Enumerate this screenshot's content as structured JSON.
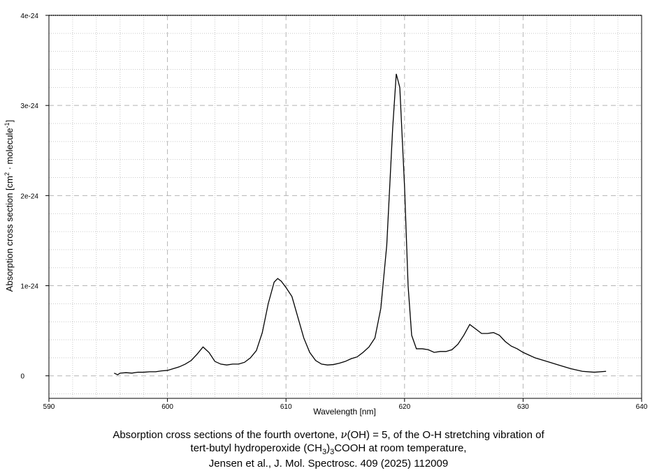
{
  "chart_data": {
    "type": "line",
    "title": "",
    "xlabel": "Wavelength [nm]",
    "ylabel": {
      "main": "Absorption cross section [cm",
      "exp1": "2",
      "mid": " · molecule",
      "exp2": "-1",
      "end": "]"
    },
    "xlim": [
      590,
      640
    ],
    "ylim": [
      -2.5e-25,
      4e-24
    ],
    "x_ticks": [
      590,
      600,
      610,
      620,
      630,
      640
    ],
    "x_tick_labels": [
      "590",
      "600",
      "610",
      "620",
      "630",
      "640"
    ],
    "y_ticks": [
      0,
      1e-24,
      2e-24,
      3e-24,
      4e-24
    ],
    "y_tick_labels": [
      "0",
      "1e-24",
      "2e-24",
      "3e-24",
      "4e-24"
    ],
    "grid": true,
    "series": [
      {
        "x": [
          595.5,
          595.8,
          596.0,
          596.5,
          597.0,
          597.5,
          598.0,
          598.5,
          599.0,
          599.5,
          600.0,
          600.5,
          601.0,
          601.5,
          602.0,
          602.5,
          603.0,
          603.5,
          604.0,
          604.5,
          605.0,
          605.5,
          606.0,
          606.5,
          607.0,
          607.5,
          608.0,
          608.5,
          609.0,
          609.3,
          609.6,
          610.0,
          610.5,
          611.0,
          611.5,
          612.0,
          612.5,
          613.0,
          613.5,
          614.0,
          614.5,
          615.0,
          615.5,
          616.0,
          616.5,
          617.0,
          617.5,
          618.0,
          618.5,
          619.0,
          619.3,
          619.6,
          620.0,
          620.3,
          620.6,
          621.0,
          621.5,
          622.0,
          622.5,
          623.0,
          623.5,
          624.0,
          624.5,
          625.0,
          625.5,
          626.0,
          626.5,
          627.0,
          627.5,
          628.0,
          628.5,
          629.0,
          629.5,
          630.0,
          630.5,
          631.0,
          632.0,
          633.0,
          634.0,
          635.0,
          636.0,
          637.0
        ],
        "y": [
          3e-26,
          1.2e-26,
          3e-26,
          3.5e-26,
          3e-26,
          4e-26,
          4e-26,
          4.5e-26,
          4.5e-26,
          5.5e-26,
          6e-26,
          8e-26,
          1e-25,
          1.3e-25,
          1.7e-25,
          2.4e-25,
          3.2e-25,
          2.6e-25,
          1.6e-25,
          1.3e-25,
          1.2e-25,
          1.3e-25,
          1.3e-25,
          1.5e-25,
          2e-25,
          2.8e-25,
          4.8e-25,
          8e-25,
          1.04e-24,
          1.08e-24,
          1.05e-24,
          9.8e-25,
          8.8e-25,
          6.5e-25,
          4.2e-25,
          2.6e-25,
          1.7e-25,
          1.3e-25,
          1.2e-25,
          1.25e-25,
          1.4e-25,
          1.6e-25,
          1.9e-25,
          2.1e-25,
          2.6e-25,
          3.2e-25,
          4.2e-25,
          7.5e-25,
          1.45e-24,
          2.75e-24,
          3.35e-24,
          3.2e-24,
          2.1e-24,
          1e-24,
          4.5e-25,
          3e-25,
          3e-25,
          2.9e-25,
          2.6e-25,
          2.7e-25,
          2.7e-25,
          2.9e-25,
          3.5e-25,
          4.5e-25,
          5.7e-25,
          5.2e-25,
          4.7e-25,
          4.7e-25,
          4.8e-25,
          4.5e-25,
          3.8e-25,
          3.3e-25,
          3e-25,
          2.6e-25,
          2.3e-25,
          2e-25,
          1.6e-25,
          1.2e-25,
          8e-26,
          5e-26,
          4e-26,
          5e-26
        ],
        "color": "#000000"
      }
    ]
  },
  "caption": {
    "line1_a": "Absorption cross sections of the fourth overtone, ",
    "nu": "ν",
    "line1_b": "(OH) = 5, of the O-H stretching vibration of",
    "line2_a": "tert-butyl hydroperoxide (CH",
    "sub": "3",
    "line2_b": ")",
    "sub2": "3",
    "line2_c": "COOH at room temperature,",
    "line3": "Jensen et al., J. Mol. Spectrosc. 409 (2025) 112009"
  }
}
